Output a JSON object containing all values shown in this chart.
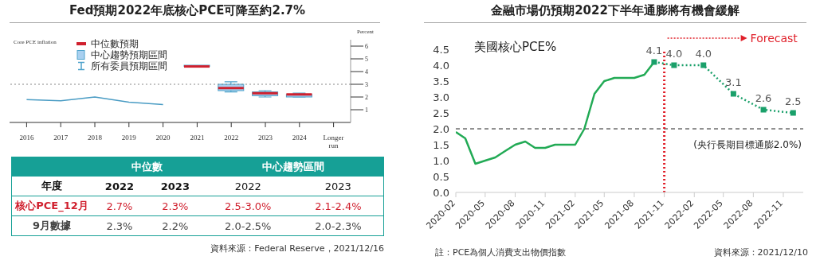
{
  "chart_data": [
    {
      "type": "line",
      "title": "Fed預期2022年底核心PCE可降至約2.7%",
      "ylabel": "Percent",
      "categories": [
        "2016",
        "2017",
        "2018",
        "2019",
        "2020",
        "2021",
        "2022",
        "2023",
        "2024",
        "Longer run"
      ],
      "series": [
        {
          "type": "box",
          "color": "#a9d0f0",
          "boxes": [
            null,
            null,
            null,
            null,
            null,
            {
              "low": 4.4,
              "q1": 4.4,
              "median": 4.4,
              "q3": 4.5,
              "high": 4.5
            },
            {
              "low": 2.4,
              "q1": 2.5,
              "median": 2.7,
              "q3": 3.0,
              "high": 3.2
            },
            {
              "low": 2.0,
              "q1": 2.1,
              "median": 2.3,
              "q3": 2.4,
              "high": 2.5
            },
            {
              "low": 2.0,
              "q1": 2.0,
              "median": 2.2,
              "q3": 2.2,
              "high": 2.3
            },
            null
          ]
        },
        {
          "type": "line",
          "color": "#4a9cc4",
          "values": [
            1.8,
            1.7,
            2.0,
            1.6,
            1.4,
            null,
            null,
            null,
            null,
            null
          ]
        }
      ],
      "ylim": [
        0,
        6.5
      ],
      "yticks": [
        1,
        2,
        3,
        4,
        5,
        6
      ],
      "ref_lines": [
        {
          "axis": "y",
          "value": 3,
          "color": "#888888",
          "line_style": "dotted"
        }
      ],
      "annotations": [
        "Core PCE inflation",
        "中位數預期",
        "中心趨勢預期區間",
        "所有委員預期區間"
      ]
    },
    {
      "type": "other",
      "categories": [
        "中位數",
        "中心趨勢區間"
      ],
      "y_categories": [
        "年度",
        "核心PCE_12月",
        "9月數據"
      ],
      "cell_labels": [
        [
          "2022",
          "2023",
          "2022",
          "2023"
        ],
        [
          "2.7%",
          "2.3%",
          "2.5-3.0%",
          "2.1-2.4%"
        ],
        [
          "2.3%",
          "2.2%",
          "2.0-2.5%",
          "2.0-2.3%"
        ]
      ],
      "colors": [
        "#16a096",
        "#111111",
        "#d0202e",
        "#444444"
      ],
      "annotations": [
        "資料來源：Federal Reserve，2021/12/16"
      ]
    },
    {
      "type": "line",
      "title": "金融市場仍預期2022下半年通膨將有機會緩解",
      "series": [
        {
          "color": "#22aa55",
          "line_style": "solid",
          "marker": "none",
          "x": [
            "2020-02",
            "2020-03",
            "2020-04",
            "2020-05",
            "2020-06",
            "2020-07",
            "2020-08",
            "2020-09",
            "2020-10",
            "2020-11",
            "2020-12",
            "2021-01",
            "2021-02",
            "2021-03",
            "2021-04",
            "2021-05",
            "2021-06",
            "2021-07",
            "2021-08",
            "2021-09",
            "2021-10"
          ],
          "values": [
            1.9,
            1.7,
            0.9,
            1.0,
            1.1,
            1.3,
            1.5,
            1.6,
            1.4,
            1.4,
            1.5,
            1.5,
            1.5,
            2.0,
            3.1,
            3.5,
            3.6,
            3.6,
            3.6,
            3.7,
            4.1
          ]
        },
        {
          "color": "#1aa06a",
          "line_style": "dotted",
          "marker": "square",
          "x": [
            "2021-10",
            "2021-12",
            "2022-03",
            "2022-06",
            "2022-09",
            "2022-12"
          ],
          "values": [
            4.1,
            4.0,
            4.0,
            3.1,
            2.6,
            2.5
          ],
          "value_labels": [
            "4.1",
            "4.0",
            "4.0",
            "3.1",
            "2.6",
            "2.5"
          ]
        }
      ],
      "xlim": [
        "2020-02",
        "2023-01"
      ],
      "xticks": [
        "2020-02",
        "2020-05",
        "2020-08",
        "2020-11",
        "2021-02",
        "2021-05",
        "2021-08",
        "2021-11",
        "2022-02",
        "2022-05",
        "2022-08",
        "2022-11"
      ],
      "ylim": [
        0,
        4.5
      ],
      "yticks": [
        {
          "value": 0,
          "label": "0.0"
        },
        {
          "value": 0.5,
          "label": "0.5"
        },
        {
          "value": 1,
          "label": "1.0"
        },
        {
          "value": 1.5,
          "label": "1.5"
        },
        {
          "value": 2,
          "label": "2.0"
        },
        {
          "value": 2.5,
          "label": "2.5"
        },
        {
          "value": 3,
          "label": "3.0"
        },
        {
          "value": 3.5,
          "label": "3.5"
        },
        {
          "value": 4,
          "label": "4.0"
        },
        {
          "value": 4.5,
          "label": "4.5"
        }
      ],
      "ref_lines": [
        {
          "axis": "y",
          "value": 2,
          "color": "#222222",
          "line_style": "dashed",
          "label": "(央行長期目標通膨2.0%)"
        },
        {
          "axis": "x",
          "value": "2021-11",
          "color": "#e0202a",
          "line_style": "dotted",
          "label": "Forecast"
        }
      ],
      "annotations": [
        "美國核心PCE%",
        "註：PCE為個人消費支出物價指數",
        "資料來源：2021/12/10"
      ]
    }
  ]
}
